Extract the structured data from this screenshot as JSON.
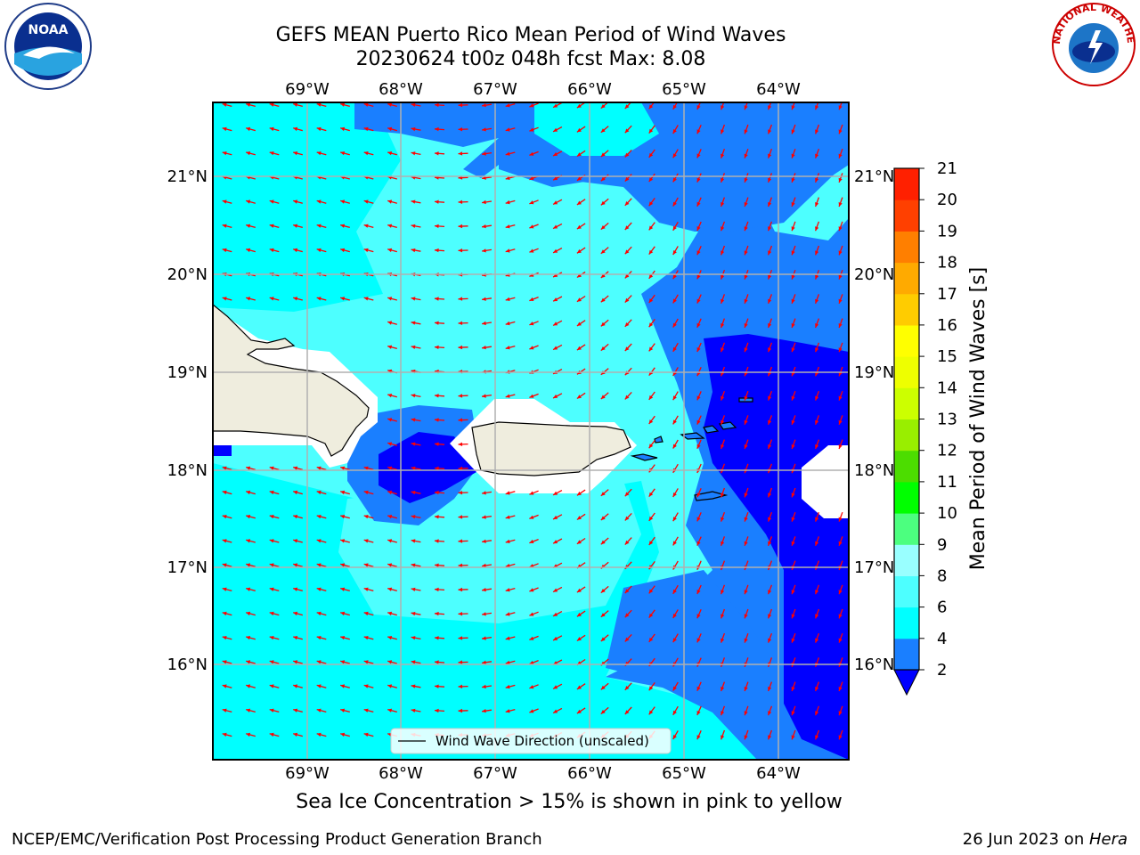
{
  "title": {
    "line1": "GEFS MEAN Puerto Rico Mean Period of Wind Waves",
    "line2": "20230624 t00z 048h fcst   Max: 8.08"
  },
  "map": {
    "lon_ticks": [
      "69°W",
      "68°W",
      "67°W",
      "66°W",
      "65°W",
      "64°W"
    ],
    "lat_ticks": [
      "21°N",
      "20°N",
      "19°N",
      "18°N",
      "17°N",
      "16°N"
    ],
    "legend_label": "Wind Wave Direction (unscaled)",
    "wind_direction": "toward WSW in west, toward SSW in east",
    "colors": {
      "ocean_light": "#00ffff",
      "ocean_mid": "#4dffff",
      "ocean_blue": "#1a7fff",
      "ocean_deep": "#0000ff",
      "land": "#efedde",
      "arrow": "#ff0000"
    }
  },
  "colorbar": {
    "label": "Mean Period of Wind Waves [s]",
    "ticks": [
      "2",
      "4",
      "6",
      "8",
      "9",
      "10",
      "11",
      "12",
      "13",
      "14",
      "15",
      "16",
      "17",
      "18",
      "19",
      "20",
      "21"
    ],
    "colors": [
      "#0000ff",
      "#1a7fff",
      "#00ffff",
      "#4dffff",
      "#99ffff",
      "#4cff7f",
      "#00ff00",
      "#4cdd00",
      "#99ee00",
      "#ccff00",
      "#eeff00",
      "#ffff00",
      "#ffcc00",
      "#ffaa00",
      "#ff7f00",
      "#ff4000",
      "#ff2000",
      "#ff0000"
    ]
  },
  "subnote": "Sea Ice Concentration > 15% is shown in pink to yellow",
  "footer": {
    "left": "NCEP/EMC/Verification Post Processing Product Generation Branch",
    "right_prefix": "26 Jun 2023 on ",
    "right_host": "Hera"
  },
  "logos": {
    "left": "NOAA",
    "right": "NATIONAL WEATHER SERVICE"
  }
}
